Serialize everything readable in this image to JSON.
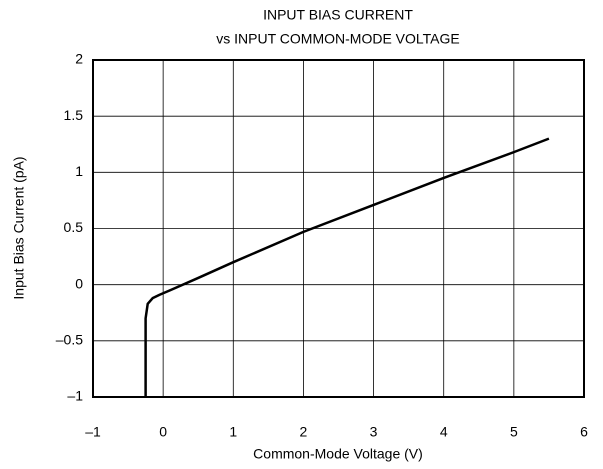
{
  "chart_data": {
    "type": "line",
    "title": [
      "INPUT BIAS CURRENT",
      "vs  INPUT COMMON-MODE VOLTAGE"
    ],
    "x_label": "Common-Mode Voltage (V)",
    "y_label": "Input Bias Current (pA)",
    "series": [
      {
        "color": "#000000",
        "x": [
          -0.25,
          -0.25,
          -0.22,
          -0.15,
          -0.05,
          0.1,
          0.5,
          1,
          2,
          3,
          4,
          5,
          5.5
        ],
        "values": [
          -1,
          -0.3,
          -0.17,
          -0.12,
          -0.09,
          -0.05,
          0.06,
          0.2,
          0.47,
          0.71,
          0.95,
          1.18,
          1.3
        ]
      }
    ],
    "xlim": [
      -1,
      6
    ],
    "xticks": [
      {
        "value": -1,
        "label": "–1"
      },
      0,
      1,
      2,
      3,
      4,
      5,
      6
    ],
    "ylim": [
      -1,
      2
    ],
    "yticks": [
      {
        "value": -1,
        "label": "–1"
      },
      {
        "value": -0.5,
        "label": "–0.5"
      },
      0,
      0.5,
      1,
      1.5,
      2
    ],
    "grid": true
  }
}
